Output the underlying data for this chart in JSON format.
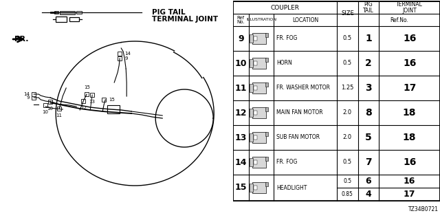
{
  "part_number": "TZ34B0721",
  "bg_color": "#ffffff",
  "lc": "#000000",
  "tc": "#000000",
  "rows": [
    {
      "ref": "9",
      "location": "FR. FOG",
      "size": "0.5",
      "pig_tail": "1",
      "term_joint": "16",
      "split": false
    },
    {
      "ref": "10",
      "location": "HORN",
      "size": "0.5",
      "pig_tail": "2",
      "term_joint": "16",
      "split": false
    },
    {
      "ref": "11",
      "location": "FR. WASHER MOTOR",
      "size": "1.25",
      "pig_tail": "3",
      "term_joint": "17",
      "split": false
    },
    {
      "ref": "12",
      "location": "MAIN FAN MOTOR",
      "size": "2.0",
      "pig_tail": "8",
      "term_joint": "18",
      "split": false
    },
    {
      "ref": "13",
      "location": "SUB FAN MOTOR",
      "size": "2.0",
      "pig_tail": "5",
      "term_joint": "18",
      "split": false
    },
    {
      "ref": "14",
      "location": "FR. FOG",
      "size": "0.5",
      "pig_tail": "7",
      "term_joint": "16",
      "split": false
    },
    {
      "ref": "15",
      "location": "HEADLIGHT",
      "sub": [
        {
          "size": "0.5",
          "pig_tail": "6",
          "term_joint": "16"
        },
        {
          "size": "0.85",
          "pig_tail": "4",
          "term_joint": "17"
        }
      ],
      "split": true
    }
  ],
  "header1": {
    "coupler_label": "COUPLER",
    "size_label": "SIZE",
    "pig_label": "PIG\nTAIL",
    "term_label": "TERMINAL\nJOINT"
  },
  "header2": {
    "ref_label": "Ref\nNo.",
    "illus_label": "ILLUSTRATION",
    "loc_label": "LOCATION",
    "refno_label": "Ref.No."
  },
  "legend": {
    "pig_label": "PIG TAIL",
    "term_label": "TERMINAL JOINT"
  },
  "fr_label": "FR."
}
